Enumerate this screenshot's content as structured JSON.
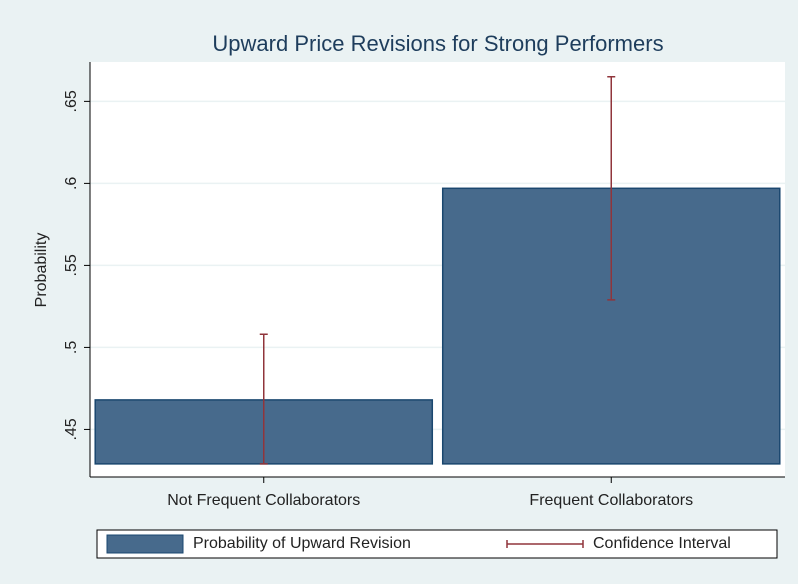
{
  "chart_data": {
    "type": "bar",
    "title": "Upward Price Revisions for Strong Performers",
    "ylabel": "Probability",
    "categories": [
      "Not Frequent Collaborators",
      "Frequent Collaborators"
    ],
    "series": [
      {
        "name": "Probability of Upward Revision",
        "color": "#476a8c",
        "values": [
          0.468,
          0.597
        ]
      },
      {
        "name": "Confidence Interval",
        "color": "#90353b",
        "type": "errorbar",
        "low": [
          0.429,
          0.529
        ],
        "high": [
          0.508,
          0.665
        ]
      }
    ],
    "bar_base": 0.429,
    "ylim": [
      0.421,
      0.674
    ],
    "yticks": [
      {
        "value": 0.45,
        "label": ".45"
      },
      {
        "value": 0.5,
        "label": ".5"
      },
      {
        "value": 0.55,
        "label": ".55"
      },
      {
        "value": 0.6,
        "label": ".6"
      },
      {
        "value": 0.65,
        "label": ".65"
      }
    ],
    "grid": true,
    "legend": "bottom"
  }
}
